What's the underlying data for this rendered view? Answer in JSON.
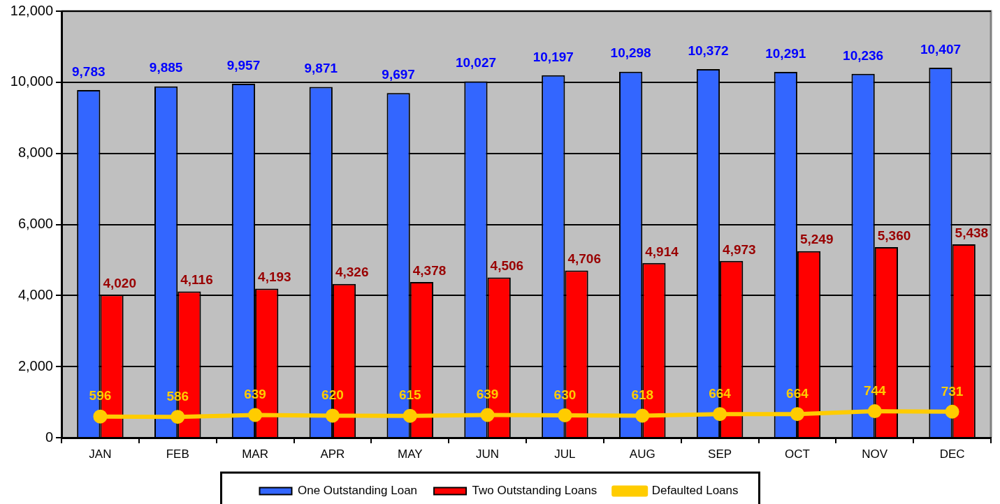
{
  "chart_data": {
    "type": "bar",
    "categories": [
      "JAN",
      "FEB",
      "MAR",
      "APR",
      "MAY",
      "JUN",
      "JUL",
      "AUG",
      "SEP",
      "OCT",
      "NOV",
      "DEC"
    ],
    "series": [
      {
        "name": "One Outstanding Loan",
        "color": "#3366ff",
        "values": [
          9783,
          9885,
          9957,
          9871,
          9697,
          10027,
          10197,
          10298,
          10372,
          10291,
          10236,
          10407
        ],
        "value_labels": [
          "9,783",
          "9,885",
          "9,957",
          "9,871",
          "9,697",
          "10,027",
          "10,197",
          "10,298",
          "10,372",
          "10,291",
          "10,236",
          "10,407"
        ]
      },
      {
        "name": "Two Outstanding Loans",
        "color": "#ff0000",
        "values": [
          4020,
          4116,
          4193,
          4326,
          4378,
          4506,
          4706,
          4914,
          4973,
          5249,
          5360,
          5438
        ],
        "value_labels": [
          "4,020",
          "4,116",
          "4,193",
          "4,326",
          "4,378",
          "4,506",
          "4,706",
          "4,914",
          "4,973",
          "5,249",
          "5,360",
          "5,438"
        ]
      },
      {
        "name": "Defaulted Loans",
        "type": "line",
        "color": "#ffcc00",
        "marker": "circle",
        "values": [
          596,
          586,
          639,
          620,
          615,
          639,
          630,
          618,
          664,
          664,
          744,
          731
        ],
        "value_labels": [
          "596",
          "586",
          "639",
          "620",
          "615",
          "639",
          "630",
          "618",
          "664",
          "664",
          "744",
          "731"
        ]
      }
    ],
    "ylim": [
      0,
      12000
    ],
    "yticks": [
      0,
      {
        "value": 2000,
        "label": "2,000"
      },
      {
        "value": 4000,
        "label": "4,000"
      },
      {
        "value": 6000,
        "label": "6,000"
      },
      {
        "value": 8000,
        "label": "8,000"
      },
      {
        "value": 10000,
        "label": "10,000"
      },
      {
        "value": 12000,
        "label": "12,000"
      }
    ],
    "grid": "y",
    "legend": "bottom"
  }
}
